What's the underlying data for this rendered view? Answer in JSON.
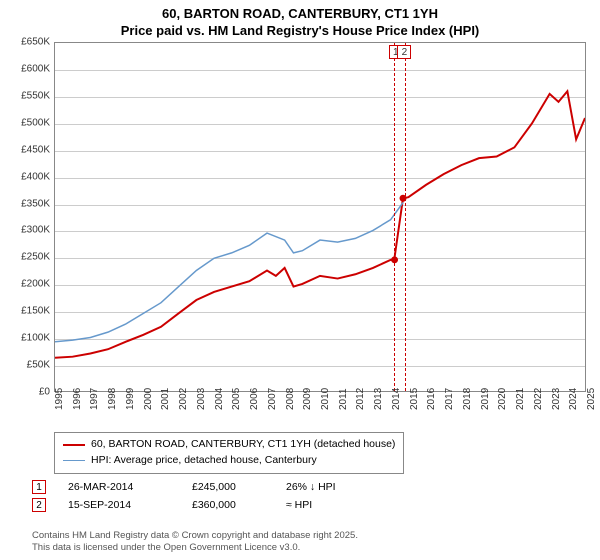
{
  "title_line1": "60, BARTON ROAD, CANTERBURY, CT1 1YH",
  "title_line2": "Price paid vs. HM Land Registry's House Price Index (HPI)",
  "chart": {
    "type": "line",
    "ylim": [
      0,
      650000
    ],
    "ytick_step": 50000,
    "yticks": [
      "£0",
      "£50K",
      "£100K",
      "£150K",
      "£200K",
      "£250K",
      "£300K",
      "£350K",
      "£400K",
      "£450K",
      "£500K",
      "£550K",
      "£600K",
      "£650K"
    ],
    "xlim": [
      1995,
      2025
    ],
    "xticks": [
      1995,
      1996,
      1997,
      1998,
      1999,
      2000,
      2001,
      2002,
      2003,
      2004,
      2005,
      2006,
      2007,
      2008,
      2009,
      2010,
      2011,
      2012,
      2013,
      2014,
      2015,
      2016,
      2017,
      2018,
      2019,
      2020,
      2021,
      2022,
      2023,
      2024,
      2025
    ],
    "background_color": "#ffffff",
    "grid_color": "#cccccc",
    "border_color": "#888888",
    "series": [
      {
        "name": "price_paid",
        "label": "60, BARTON ROAD, CANTERBURY, CT1 1YH (detached house)",
        "color": "#cc0000",
        "line_width": 2,
        "points": [
          [
            1995,
            62000
          ],
          [
            1996,
            64000
          ],
          [
            1997,
            70000
          ],
          [
            1998,
            78000
          ],
          [
            1999,
            92000
          ],
          [
            2000,
            105000
          ],
          [
            2001,
            120000
          ],
          [
            2002,
            145000
          ],
          [
            2003,
            170000
          ],
          [
            2004,
            185000
          ],
          [
            2005,
            195000
          ],
          [
            2006,
            205000
          ],
          [
            2007,
            225000
          ],
          [
            2007.5,
            215000
          ],
          [
            2008,
            230000
          ],
          [
            2008.5,
            195000
          ],
          [
            2009,
            200000
          ],
          [
            2010,
            215000
          ],
          [
            2011,
            210000
          ],
          [
            2012,
            218000
          ],
          [
            2013,
            230000
          ],
          [
            2014,
            245000
          ],
          [
            2014.2,
            245000
          ],
          [
            2014.7,
            360000
          ],
          [
            2015,
            362000
          ],
          [
            2016,
            385000
          ],
          [
            2017,
            405000
          ],
          [
            2018,
            422000
          ],
          [
            2019,
            435000
          ],
          [
            2020,
            438000
          ],
          [
            2021,
            455000
          ],
          [
            2022,
            500000
          ],
          [
            2023,
            555000
          ],
          [
            2023.5,
            540000
          ],
          [
            2024,
            560000
          ],
          [
            2024.5,
            470000
          ],
          [
            2025,
            510000
          ]
        ]
      },
      {
        "name": "hpi",
        "label": "HPI: Average price, detached house, Canterbury",
        "color": "#6699cc",
        "line_width": 1.5,
        "points": [
          [
            1995,
            92000
          ],
          [
            1996,
            95000
          ],
          [
            1997,
            100000
          ],
          [
            1998,
            110000
          ],
          [
            1999,
            125000
          ],
          [
            2000,
            145000
          ],
          [
            2001,
            165000
          ],
          [
            2002,
            195000
          ],
          [
            2003,
            225000
          ],
          [
            2004,
            248000
          ],
          [
            2005,
            258000
          ],
          [
            2006,
            272000
          ],
          [
            2007,
            295000
          ],
          [
            2008,
            282000
          ],
          [
            2008.5,
            258000
          ],
          [
            2009,
            262000
          ],
          [
            2010,
            282000
          ],
          [
            2011,
            278000
          ],
          [
            2012,
            285000
          ],
          [
            2013,
            300000
          ],
          [
            2014,
            320000
          ],
          [
            2014.7,
            352000
          ]
        ]
      }
    ],
    "sale_markers": [
      {
        "idx": "1",
        "x": 2014.22,
        "y": 245000
      },
      {
        "idx": "2",
        "x": 2014.7,
        "y": 360000
      }
    ]
  },
  "legend": {
    "items": [
      {
        "color": "#cc0000",
        "width": 2.5,
        "label": "60, BARTON ROAD, CANTERBURY, CT1 1YH (detached house)"
      },
      {
        "color": "#6699cc",
        "width": 1.5,
        "label": "HPI: Average price, detached house, Canterbury"
      }
    ]
  },
  "transactions": [
    {
      "idx": "1",
      "date": "26-MAR-2014",
      "price": "£245,000",
      "delta": "26% ↓ HPI"
    },
    {
      "idx": "2",
      "date": "15-SEP-2014",
      "price": "£360,000",
      "delta": "≈ HPI"
    }
  ],
  "footer_line1": "Contains HM Land Registry data © Crown copyright and database right 2025.",
  "footer_line2": "This data is licensed under the Open Government Licence v3.0."
}
